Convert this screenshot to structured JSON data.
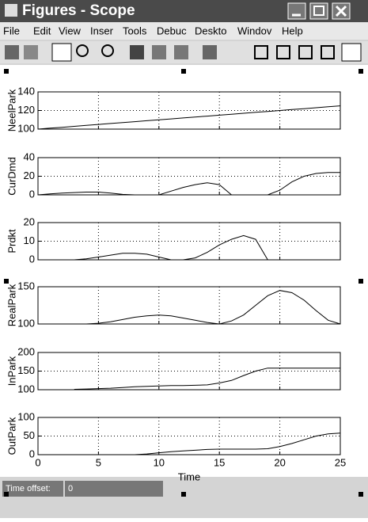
{
  "window": {
    "title": "Figures - Scope",
    "menu": [
      "File",
      "Edit",
      "View",
      "Inser",
      "Tools",
      "Debuc",
      "Deskto",
      "Windov",
      "Help"
    ],
    "status": {
      "label": "Time offset:",
      "value": "0"
    }
  },
  "chart_data": [
    {
      "type": "line",
      "ylabel": "NeelPark",
      "x": [
        0,
        1,
        2,
        3,
        4,
        5,
        6,
        7,
        8,
        9,
        10,
        11,
        12,
        13,
        14,
        15,
        16,
        17,
        18,
        19,
        20,
        21,
        22,
        23,
        24,
        25
      ],
      "values": [
        100,
        101,
        102,
        103,
        104,
        105,
        106,
        107,
        108,
        109,
        110,
        111,
        112,
        113,
        114,
        115,
        116,
        117,
        118,
        119,
        120,
        121,
        122,
        123,
        124,
        125
      ],
      "color": "#000000",
      "xlim": [
        0,
        25
      ],
      "ylim": [
        100,
        140
      ],
      "xticks": [
        0,
        5,
        10,
        15,
        20,
        25
      ],
      "yticks": [
        100,
        120,
        140
      ],
      "grid": true
    },
    {
      "type": "line",
      "ylabel": "CurDmd",
      "x": [
        0,
        1,
        2,
        3,
        4,
        5,
        6,
        7,
        8,
        9,
        10,
        11,
        12,
        13,
        14,
        15,
        16,
        17,
        18,
        19,
        20,
        21,
        22,
        23,
        24,
        25
      ],
      "values": [
        0,
        1,
        2,
        2.5,
        3,
        3,
        2,
        0.5,
        0,
        0,
        0,
        4,
        8,
        11,
        13,
        11,
        0,
        0,
        0,
        0,
        5,
        14,
        20,
        23,
        24,
        24
      ],
      "color": "#000000",
      "xlim": [
        0,
        25
      ],
      "ylim": [
        0,
        40
      ],
      "xticks": [
        0,
        5,
        10,
        15,
        20,
        25
      ],
      "yticks": [
        0,
        20,
        40
      ],
      "grid": true
    },
    {
      "type": "line",
      "ylabel": "Prdkt",
      "x": [
        0,
        1,
        2,
        3,
        4,
        5,
        6,
        7,
        8,
        9,
        10,
        11,
        12,
        13,
        14,
        15,
        16,
        17,
        18,
        19,
        20,
        21,
        22,
        23,
        24,
        25
      ],
      "values": [
        0,
        0,
        0,
        0,
        0.5,
        1.5,
        2.5,
        3.5,
        3.5,
        3,
        1.5,
        0,
        0,
        1,
        4,
        8,
        11,
        13,
        11,
        0,
        0,
        0,
        0,
        0,
        0,
        0
      ],
      "color": "#000000",
      "xlim": [
        0,
        25
      ],
      "ylim": [
        0,
        20
      ],
      "xticks": [
        0,
        5,
        10,
        15,
        20,
        25
      ],
      "yticks": [
        0,
        10,
        20
      ],
      "grid": true
    },
    {
      "type": "line",
      "ylabel": "RealPark",
      "x": [
        0,
        1,
        2,
        3,
        4,
        5,
        6,
        7,
        8,
        9,
        10,
        11,
        12,
        13,
        14,
        15,
        16,
        17,
        18,
        19,
        20,
        21,
        22,
        23,
        24,
        25
      ],
      "values": [
        100,
        100,
        100,
        100,
        100,
        101,
        103,
        106,
        109,
        111,
        112,
        111,
        108,
        105,
        102,
        100,
        104,
        112,
        125,
        138,
        145,
        142,
        132,
        118,
        105,
        100
      ],
      "color": "#000000",
      "xlim": [
        0,
        25
      ],
      "ylim": [
        100,
        150
      ],
      "xticks": [
        0,
        5,
        10,
        15,
        20,
        25
      ],
      "yticks": [
        100,
        150
      ],
      "grid": true
    },
    {
      "type": "line",
      "ylabel": "InPark",
      "x": [
        0,
        1,
        2,
        3,
        4,
        5,
        6,
        7,
        8,
        9,
        10,
        11,
        12,
        13,
        14,
        15,
        16,
        17,
        18,
        19,
        20,
        21,
        22,
        23,
        24,
        25
      ],
      "values": [
        null,
        null,
        null,
        101,
        102,
        103,
        104,
        106,
        108,
        109,
        110,
        111,
        111,
        112,
        113,
        118,
        125,
        138,
        150,
        158,
        158,
        158,
        158,
        158,
        158,
        158
      ],
      "color": "#000000",
      "xlim": [
        0,
        25
      ],
      "ylim": [
        100,
        200
      ],
      "xticks": [
        0,
        5,
        10,
        15,
        20,
        25
      ],
      "yticks": [
        100,
        150,
        200
      ],
      "grid": true
    },
    {
      "type": "line",
      "ylabel": "OutPark",
      "xlabel": "Time",
      "x": [
        0,
        1,
        2,
        3,
        4,
        5,
        6,
        7,
        8,
        9,
        10,
        11,
        12,
        13,
        14,
        15,
        16,
        17,
        18,
        19,
        20,
        21,
        22,
        23,
        24,
        25
      ],
      "values": [
        null,
        null,
        null,
        null,
        null,
        null,
        null,
        null,
        0,
        2,
        5,
        8,
        10,
        12,
        14,
        15,
        15,
        15,
        15,
        16,
        22,
        30,
        40,
        50,
        56,
        58
      ],
      "color": "#000000",
      "xlim": [
        0,
        25
      ],
      "ylim": [
        0,
        100
      ],
      "xticks": [
        0,
        5,
        10,
        15,
        20,
        25
      ],
      "yticks": [
        0,
        50,
        100
      ],
      "grid": true
    }
  ]
}
